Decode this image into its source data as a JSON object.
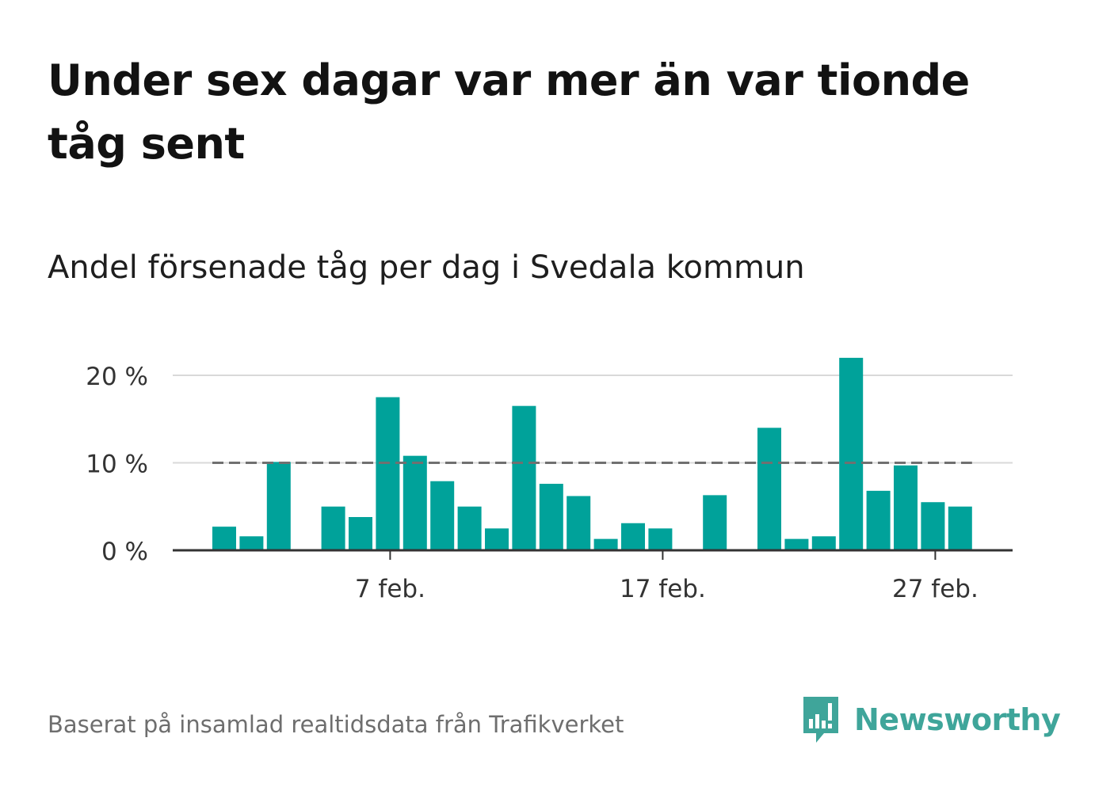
{
  "title": "Under sex dagar var mer än var tionde tåg sent",
  "subtitle": "Andel försenade tåg per dag i Svedala kommun",
  "footer": "Baserat på insamlad realtidsdata från Trafikverket",
  "brand": {
    "name": "Newsworthy",
    "icon": "newsworthy-logo-icon",
    "color": "#3fa59a"
  },
  "colors": {
    "bar": "#00a29a",
    "grid": "#d9d9d9",
    "axis": "#333333",
    "reference": "#707070"
  },
  "chart_data": {
    "type": "bar",
    "x": [
      1,
      2,
      3,
      4,
      5,
      6,
      7,
      8,
      9,
      10,
      11,
      12,
      13,
      14,
      15,
      16,
      17,
      18,
      19,
      20,
      21,
      22,
      23,
      24,
      25,
      26,
      27,
      28
    ],
    "values": [
      2.7,
      1.6,
      10.1,
      0,
      5.0,
      3.8,
      17.5,
      10.8,
      7.9,
      5.0,
      2.5,
      16.5,
      7.6,
      6.2,
      1.3,
      3.1,
      2.5,
      0,
      6.3,
      0,
      14.0,
      1.3,
      1.6,
      22.0,
      6.8,
      9.7,
      5.5,
      5.0
    ],
    "x_unit": "day of February",
    "xticks": [
      {
        "value": 7,
        "label": "7 feb."
      },
      {
        "value": 17,
        "label": "17 feb."
      },
      {
        "value": 27,
        "label": "27 feb."
      }
    ],
    "yticks": [
      {
        "value": 0,
        "label": "0 %"
      },
      {
        "value": 10,
        "label": "10 %"
      },
      {
        "value": 20,
        "label": "20 %"
      }
    ],
    "ylim": [
      0,
      20
    ],
    "reference_line": {
      "value": 10,
      "style": "dashed",
      "from": 1,
      "to": 28
    },
    "grid": true,
    "title": "Andel försenade tåg per dag i Svedala kommun"
  }
}
